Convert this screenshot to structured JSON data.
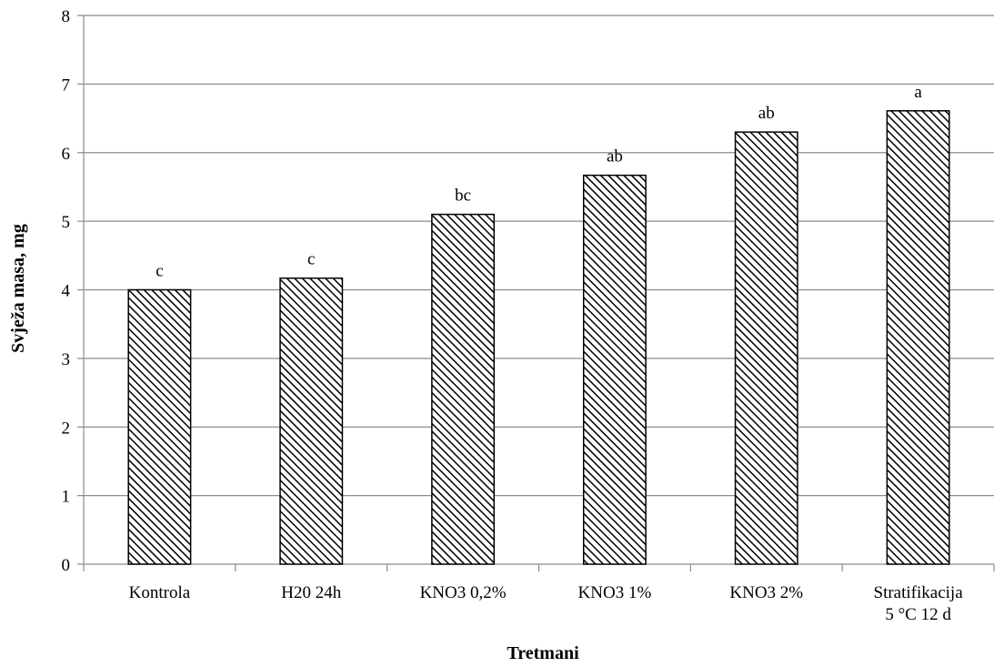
{
  "chart_data": {
    "type": "bar",
    "categories": [
      [
        "Kontrola"
      ],
      [
        "H20 24h"
      ],
      [
        "KNO3 0,2%"
      ],
      [
        "KNO3 1%"
      ],
      [
        "KNO3 2%"
      ],
      [
        "Stratifikacija",
        "5 °C 12 d"
      ]
    ],
    "values": [
      4.0,
      4.17,
      5.1,
      5.67,
      6.3,
      6.61
    ],
    "significance_labels": [
      "c",
      "c",
      "bc",
      "ab",
      "ab",
      "a"
    ],
    "xlabel": "Tretmani",
    "ylabel": "Svježa masa, mg",
    "ylim": [
      0,
      8
    ],
    "yticks": [
      0,
      1,
      2,
      3,
      4,
      5,
      6,
      7,
      8
    ],
    "grid": true,
    "bar_fill": "diagonal-hatch",
    "colors": {
      "bar_hatch": "#000000",
      "bar_background": "#ffffff",
      "grid": "#8c8c8c"
    }
  }
}
